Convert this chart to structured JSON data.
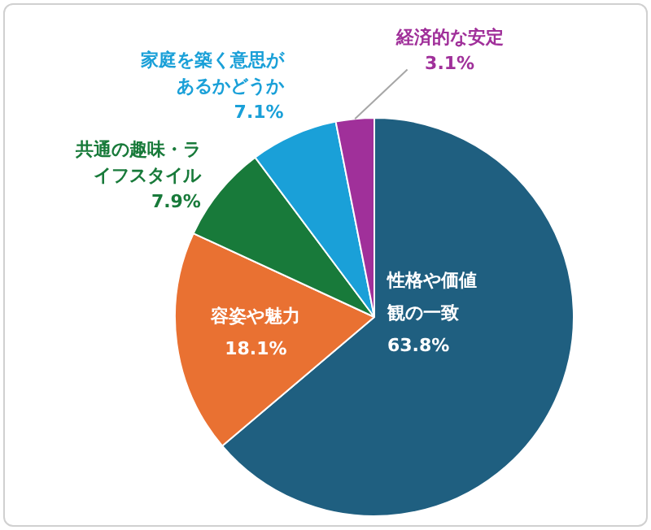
{
  "chart_data": {
    "type": "pie",
    "categories": [
      "性格や価値観の一致",
      "容姿や魅力",
      "共通の趣味・ライフスタイル",
      "家庭を築く意思があるかどうか",
      "経済的な安定"
    ],
    "values": [
      63.8,
      18.1,
      7.9,
      7.1,
      3.1
    ],
    "colors": [
      "#1f5f80",
      "#e97132",
      "#187a3a",
      "#1aa0d8",
      "#a0309a"
    ],
    "value_labels": [
      "63.8%",
      "18.1%",
      "7.9%",
      "7.1%",
      "3.1%"
    ],
    "legend": false
  }
}
